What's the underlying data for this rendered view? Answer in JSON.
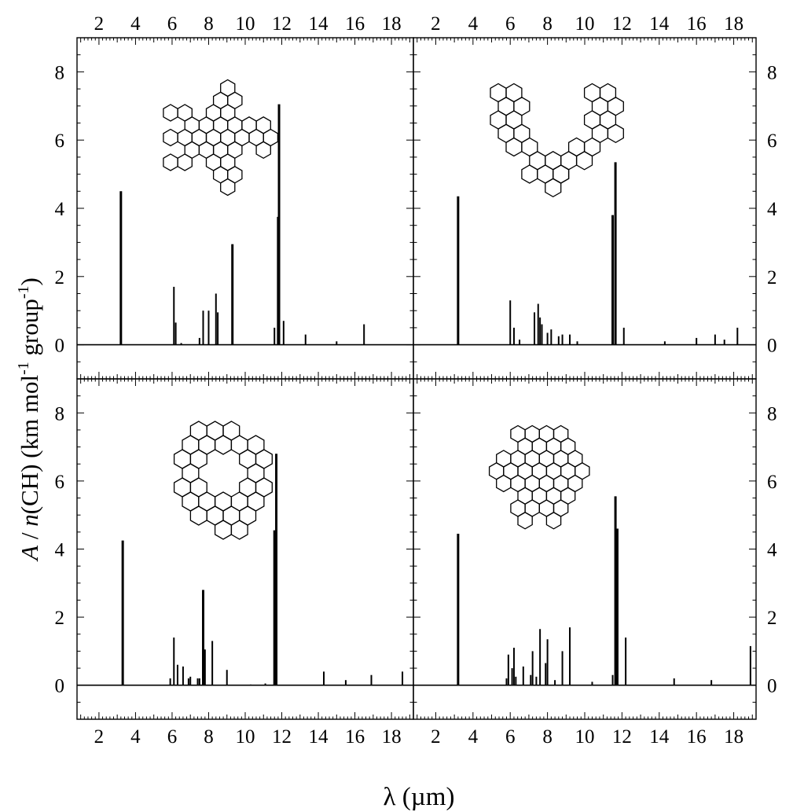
{
  "figure": {
    "xlabel": "λ (µm)",
    "ylabel": "A / n(CH) (km mol-1 group-1)",
    "ylabel_parts": {
      "a": "A",
      "slash": " / ",
      "n": "n",
      "rest": "(CH) (km mol",
      "sup1": "-1",
      "mid": " group",
      "sup2": "-1",
      "close": ")"
    }
  },
  "axes": {
    "xlim": [
      0.8,
      19.2
    ],
    "ylim": [
      -1,
      9
    ],
    "x_ticks": [
      2,
      4,
      6,
      8,
      10,
      12,
      14,
      16,
      18
    ],
    "x_tick_labels": [
      "2",
      "4",
      "6",
      "8",
      "10",
      "12",
      "14",
      "16",
      "18"
    ],
    "y_ticks": [
      0,
      2,
      4,
      6,
      8
    ],
    "y_tick_labels": [
      "0",
      "2",
      "4",
      "6",
      "8"
    ]
  },
  "colors": {
    "line": "#000000",
    "background": "#ffffff"
  },
  "chart_data": [
    {
      "type": "bar",
      "panel": "top-left",
      "molecule_icon": "star-shaped-pah-molecule-icon",
      "x": [
        3.2,
        6.1,
        6.2,
        6.5,
        7.5,
        7.7,
        8.0,
        8.4,
        8.5,
        9.3,
        11.6,
        11.8,
        11.85,
        12.1,
        13.3,
        15.0,
        16.5
      ],
      "y": [
        4.5,
        1.7,
        0.65,
        0.05,
        0.2,
        1.0,
        1.0,
        1.5,
        0.95,
        2.95,
        0.5,
        3.75,
        7.05,
        0.7,
        0.3,
        0.1,
        0.6
      ]
    },
    {
      "type": "bar",
      "panel": "top-right",
      "molecule_icon": "u-shaped-pah-molecule-icon",
      "x": [
        3.2,
        6.0,
        6.2,
        6.5,
        7.3,
        7.5,
        7.6,
        7.7,
        8.0,
        8.2,
        8.6,
        8.8,
        9.2,
        9.6,
        11.5,
        11.65,
        12.1,
        14.3,
        16.0,
        17.0,
        17.5,
        18.2
      ],
      "y": [
        4.35,
        1.3,
        0.5,
        0.15,
        0.95,
        1.2,
        0.8,
        0.6,
        0.35,
        0.45,
        0.25,
        0.3,
        0.3,
        0.1,
        3.8,
        5.35,
        0.5,
        0.1,
        0.2,
        0.3,
        0.15,
        0.5
      ]
    },
    {
      "type": "bar",
      "panel": "bottom-left",
      "molecule_icon": "ring-shaped-pah-molecule-icon",
      "x": [
        3.3,
        5.9,
        6.1,
        6.3,
        6.6,
        6.9,
        7.0,
        7.4,
        7.5,
        7.7,
        7.8,
        8.2,
        9.0,
        10.3,
        11.1,
        11.6,
        11.7,
        14.3,
        15.5,
        16.9,
        18.6
      ],
      "y": [
        4.25,
        0.2,
        1.4,
        0.6,
        0.55,
        0.2,
        0.25,
        0.2,
        0.2,
        2.8,
        1.05,
        1.3,
        0.45,
        0.02,
        0.05,
        4.55,
        6.8,
        0.4,
        0.15,
        0.3,
        0.4
      ],
      "labels": []
    },
    {
      "type": "bar",
      "panel": "bottom-right",
      "molecule_icon": "compact-pah-molecule-icon",
      "x": [
        3.2,
        5.8,
        5.9,
        6.1,
        6.2,
        6.3,
        6.7,
        7.1,
        7.2,
        7.4,
        7.6,
        7.9,
        8.0,
        8.4,
        8.8,
        9.2,
        10.4,
        11.5,
        11.65,
        11.75,
        12.2,
        14.8,
        16.8,
        18.9
      ],
      "y": [
        4.45,
        0.2,
        0.9,
        0.5,
        1.1,
        0.25,
        0.55,
        0.3,
        1.0,
        0.25,
        1.65,
        0.65,
        1.35,
        0.15,
        1.0,
        1.7,
        0.1,
        0.3,
        5.55,
        4.6,
        1.4,
        0.2,
        0.15,
        1.15
      ]
    }
  ]
}
